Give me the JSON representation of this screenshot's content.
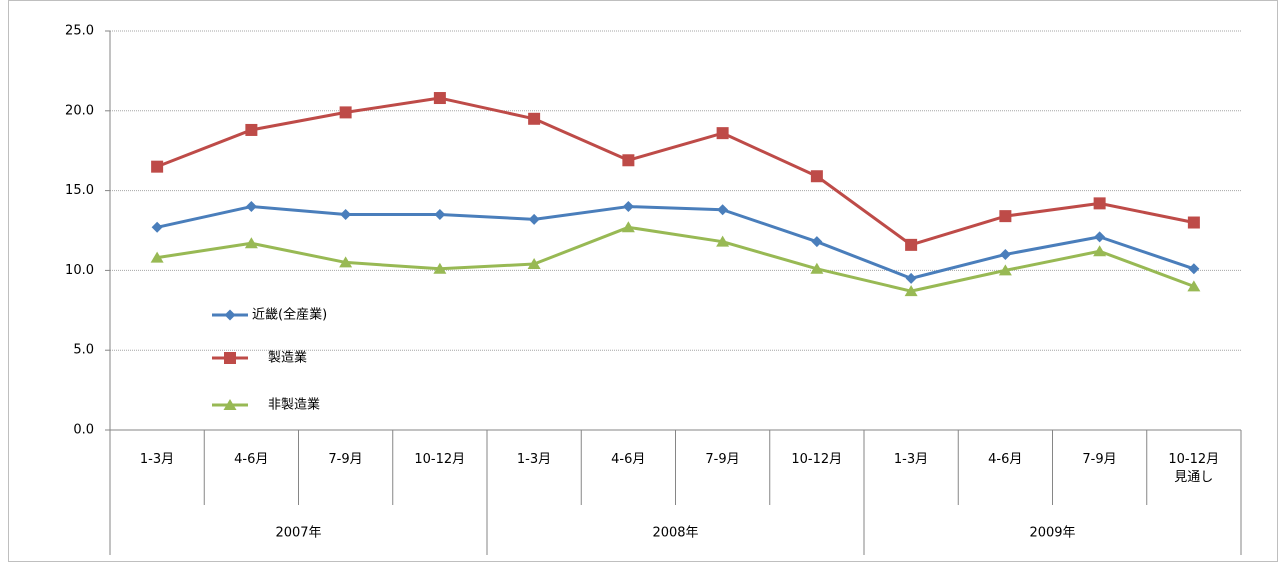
{
  "chart_data": {
    "type": "line",
    "categories": [
      "1-3月",
      "4-6月",
      "7-9月",
      "10-12月",
      "1-3月",
      "4-6月",
      "7-9月",
      "10-12月",
      "1-3月",
      "4-6月",
      "7-9月",
      "10-12月\n見通し"
    ],
    "groups": [
      "2007年",
      "2008年",
      "2009年"
    ],
    "series": [
      {
        "name": "近畿(全産業)",
        "color": "#4a7ebb",
        "marker": "diamond",
        "values": [
          12.7,
          14.0,
          13.5,
          13.5,
          13.2,
          14.0,
          13.8,
          11.8,
          9.5,
          11.0,
          12.1,
          10.1
        ]
      },
      {
        "name": "製造業",
        "color": "#be4b48",
        "marker": "square",
        "values": [
          16.5,
          18.8,
          19.9,
          20.8,
          19.5,
          16.9,
          18.6,
          15.9,
          11.6,
          13.4,
          14.2,
          13.0
        ]
      },
      {
        "name": "非製造業",
        "color": "#98b954",
        "marker": "triangle",
        "values": [
          10.8,
          11.7,
          10.5,
          10.1,
          10.4,
          12.7,
          11.8,
          10.1,
          8.7,
          10.0,
          11.2,
          9.0
        ]
      }
    ],
    "ylim": [
      0,
      25
    ],
    "yticks": [
      {
        "value": 0,
        "label": "0.0"
      },
      {
        "value": 5,
        "label": "5.0"
      },
      {
        "value": 10,
        "label": "10.0"
      },
      {
        "value": 15,
        "label": "15.0"
      },
      {
        "value": 20,
        "label": "20.0"
      },
      {
        "value": 25,
        "label": "25.0"
      }
    ],
    "grid": true
  }
}
